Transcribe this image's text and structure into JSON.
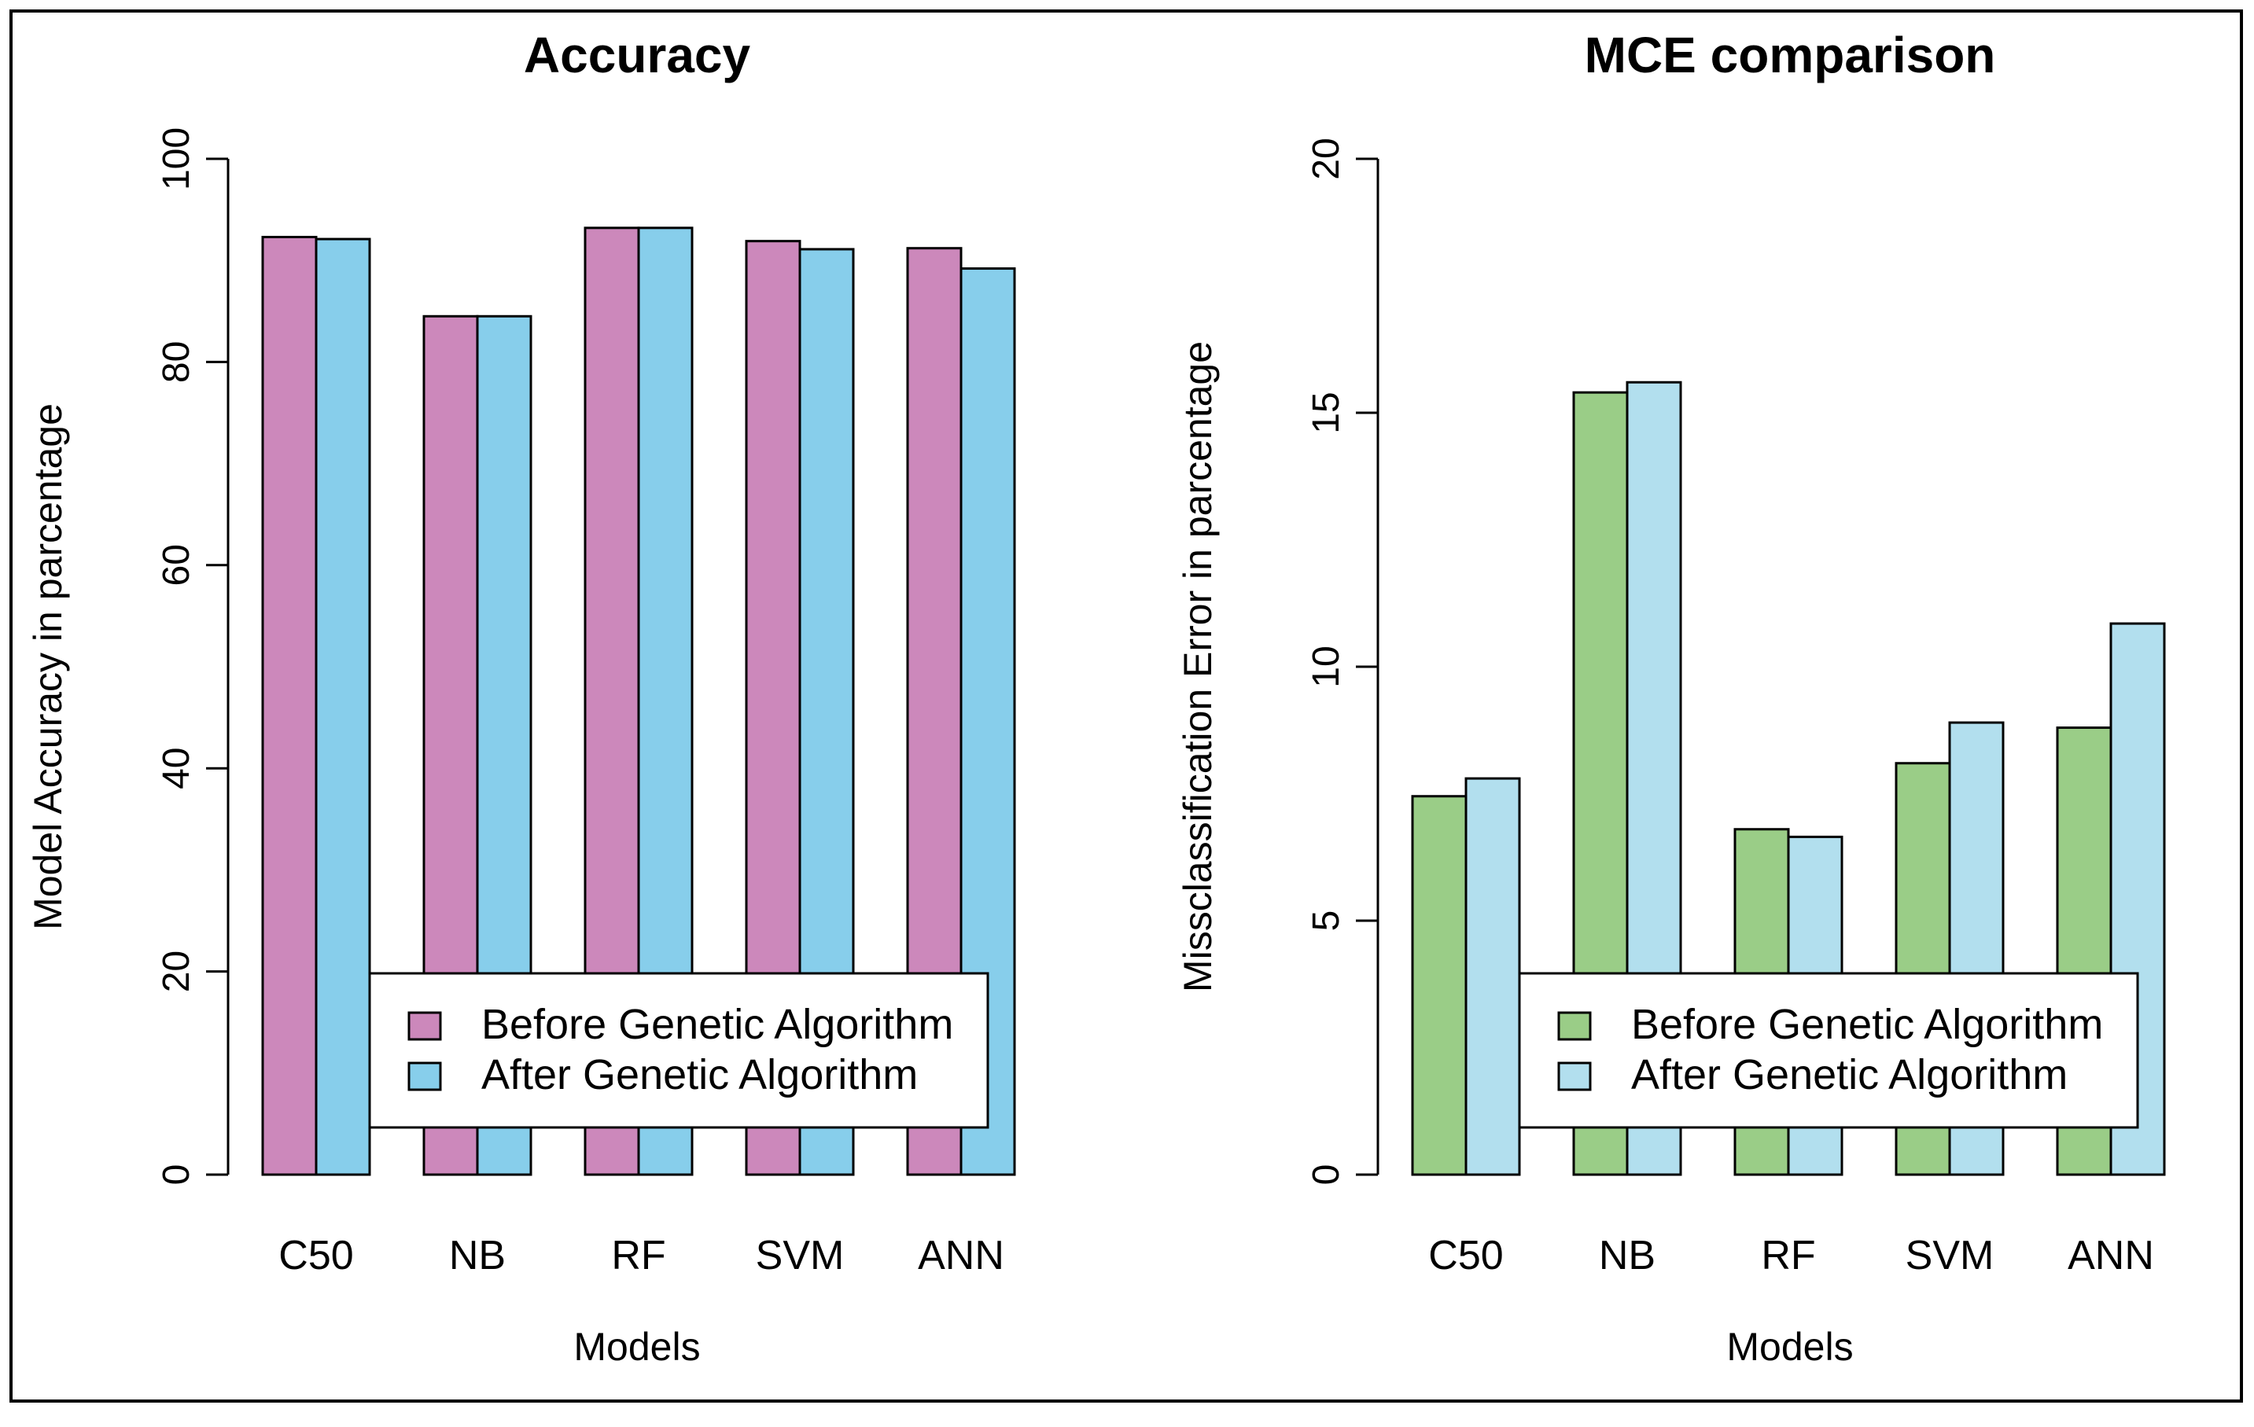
{
  "chart_data": [
    {
      "type": "bar",
      "title": "Accuracy",
      "xlabel": "Models",
      "ylabel": "Model Accuracy in parcentage",
      "categories": [
        "C50",
        "NB",
        "RF",
        "SVM",
        "ANN"
      ],
      "ylim": [
        0,
        100
      ],
      "yticks": [
        "0",
        "20",
        "40",
        "60",
        "80",
        "100"
      ],
      "series": [
        {
          "name": "Before Genetic Algorithm",
          "values": [
            92.3,
            84.5,
            93.2,
            91.9,
            91.2
          ],
          "color": "#cc88bb"
        },
        {
          "name": "After Genetic Algorithm",
          "values": [
            92.1,
            84.5,
            93.2,
            91.1,
            89.2
          ],
          "color": "#87ceeb"
        }
      ],
      "legend": "bottom-right",
      "grid": false
    },
    {
      "type": "bar",
      "title": "MCE comparison",
      "xlabel": "Models",
      "ylabel": "Missclassification Error in parcentage",
      "categories": [
        "C50",
        "NB",
        "RF",
        "SVM",
        "ANN"
      ],
      "ylim": [
        0,
        20
      ],
      "yticks": [
        "0",
        "5",
        "10",
        "15",
        "20"
      ],
      "series": [
        {
          "name": "Before Genetic Algorithm",
          "values": [
            7.45,
            15.4,
            6.8,
            8.1,
            8.8
          ],
          "color": "#9acd87"
        },
        {
          "name": "After Genetic Algorithm",
          "values": [
            7.8,
            15.6,
            6.65,
            8.9,
            10.85
          ],
          "color": "#b2dfee"
        }
      ],
      "legend": "bottom-right",
      "grid": false
    }
  ]
}
